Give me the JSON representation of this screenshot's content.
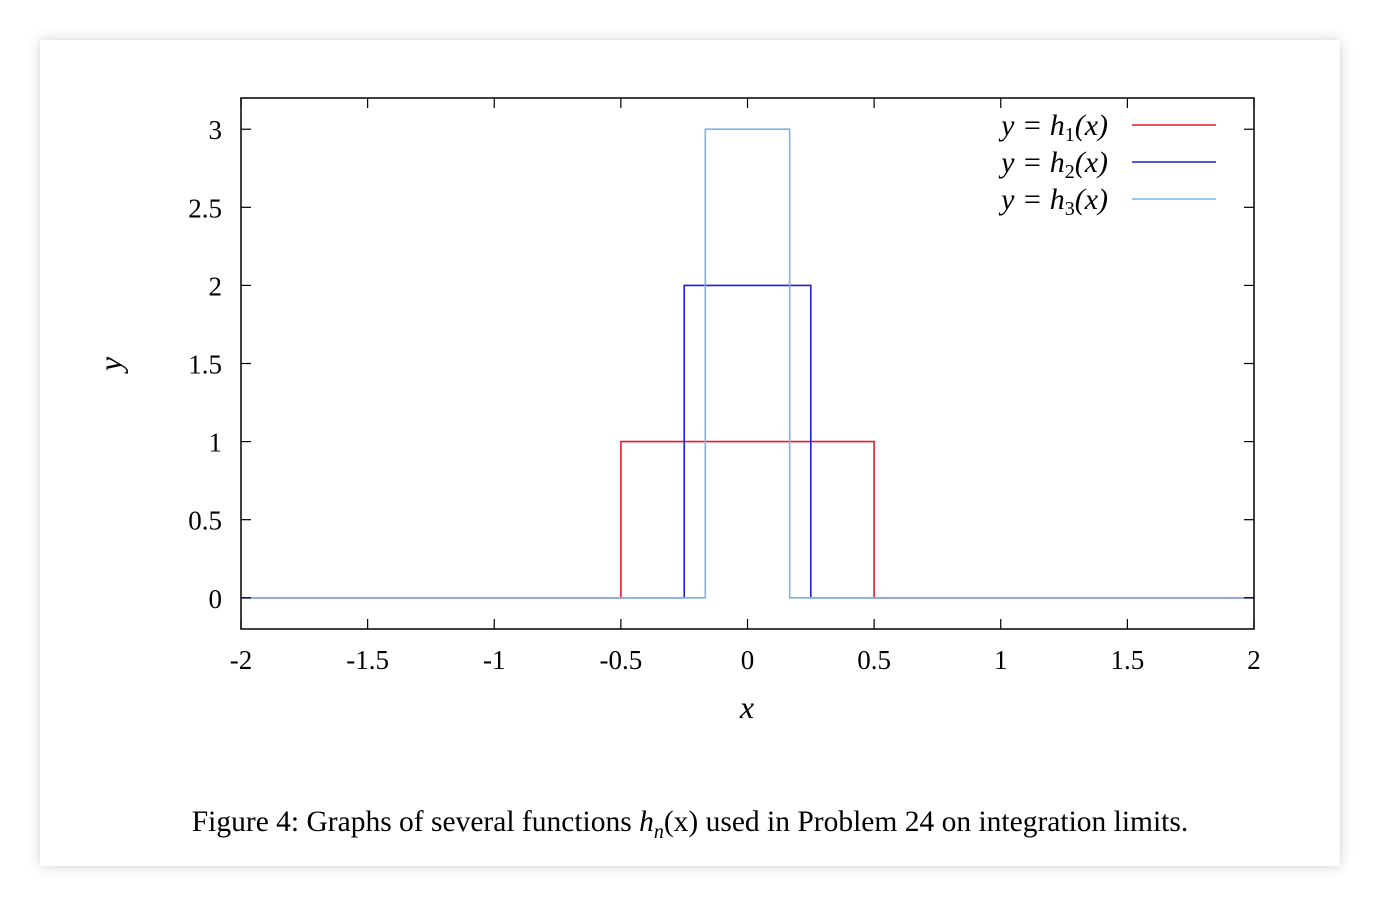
{
  "chart_data": {
    "type": "line",
    "xlabel": "x",
    "ylabel": "y",
    "xlim": [
      -2,
      2
    ],
    "ylim": [
      -0.2,
      3.2
    ],
    "xticks": [
      -2,
      -1.5,
      -1,
      -0.5,
      0,
      0.5,
      1,
      1.5,
      2
    ],
    "xtick_labels": [
      "-2",
      "-1.5",
      "-1",
      "-0.5",
      "0",
      "0.5",
      "1",
      "1.5",
      "2"
    ],
    "yticks": [
      0,
      0.5,
      1,
      1.5,
      2,
      2.5,
      3
    ],
    "ytick_labels": [
      "0",
      "0.5",
      "1",
      "1.5",
      "2",
      "2.5",
      "3"
    ],
    "grid": false,
    "legend_position": "top-right",
    "series": [
      {
        "name": "y = h1(x)",
        "legend": {
          "prefix": "y = h",
          "sub": "1",
          "suffix": "(x)"
        },
        "color": "#e8192c",
        "x": [
          -2,
          -0.5,
          -0.5,
          0.5,
          0.5,
          2
        ],
        "y": [
          0,
          0,
          1,
          1,
          0,
          0
        ]
      },
      {
        "name": "y = h2(x)",
        "legend": {
          "prefix": "y = h",
          "sub": "2",
          "suffix": "(x)"
        },
        "color": "#1f1fd8",
        "x": [
          -2,
          -0.25,
          -0.25,
          0.25,
          0.25,
          2
        ],
        "y": [
          0,
          0,
          2,
          2,
          0,
          0
        ]
      },
      {
        "name": "y = h3(x)",
        "legend": {
          "prefix": "y = h",
          "sub": "3",
          "suffix": "(x)"
        },
        "color": "#7ab2ee",
        "x": [
          -2,
          -0.1667,
          -0.1667,
          0.1667,
          0.1667,
          2
        ],
        "y": [
          0,
          0,
          3,
          3,
          0,
          0
        ]
      }
    ]
  },
  "caption": {
    "before": "Figure 4: Graphs of several functions ",
    "math_h": "h",
    "math_sub": "n",
    "math_arg": "(x)",
    "after": " used in Problem 24 on integration limits."
  }
}
